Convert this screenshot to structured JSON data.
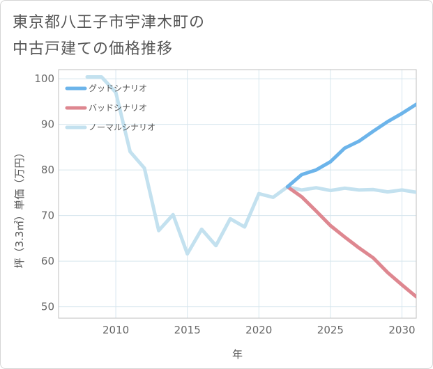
{
  "title": {
    "line1": "東京都八王子市宇津木町の",
    "line2": "中古戸建ての価格推移"
  },
  "chart_data": {
    "type": "line",
    "title": "東京都八王子市宇津木町の中古戸建ての価格推移",
    "xlabel": "年",
    "ylabel": "坪（3.3㎡）単価（万円）",
    "xlim": [
      2006,
      2031
    ],
    "ylim": [
      47.5,
      102
    ],
    "xticks": [
      2010,
      2015,
      2020,
      2025,
      2030
    ],
    "yticks": [
      50,
      60,
      70,
      80,
      90,
      100
    ],
    "grid": true,
    "legend_position": "top-left",
    "series": [
      {
        "name": "グッドシナリオ",
        "color": "#6cb4ea",
        "x": [
          2022,
          2023,
          2024,
          2025,
          2026,
          2027,
          2028,
          2029,
          2030,
          2031
        ],
        "y": [
          76.3,
          79.0,
          80.0,
          81.8,
          84.8,
          86.3,
          88.5,
          90.6,
          92.4,
          94.4
        ]
      },
      {
        "name": "バッドシナリオ",
        "color": "#de8790",
        "x": [
          2022,
          2023,
          2024,
          2025,
          2026,
          2027,
          2028,
          2029,
          2030,
          2031
        ],
        "y": [
          76.3,
          74.1,
          71.0,
          67.8,
          65.3,
          62.9,
          60.7,
          57.5,
          54.8,
          52.2
        ]
      },
      {
        "name": "ノーマルシナリオ",
        "color": "#c3e1ef",
        "x": [
          2008,
          2009,
          2010,
          2011,
          2012,
          2013,
          2014,
          2015,
          2016,
          2017,
          2018,
          2019,
          2020,
          2021,
          2022,
          2023,
          2024,
          2025,
          2026,
          2027,
          2028,
          2029,
          2030,
          2031
        ],
        "y": [
          100.4,
          100.4,
          97.0,
          84.0,
          80.4,
          66.7,
          70.2,
          61.6,
          67.0,
          63.4,
          69.3,
          67.5,
          74.8,
          74.0,
          76.3,
          75.6,
          76.1,
          75.5,
          76.0,
          75.6,
          75.7,
          75.2,
          75.6,
          75.1
        ]
      }
    ]
  }
}
